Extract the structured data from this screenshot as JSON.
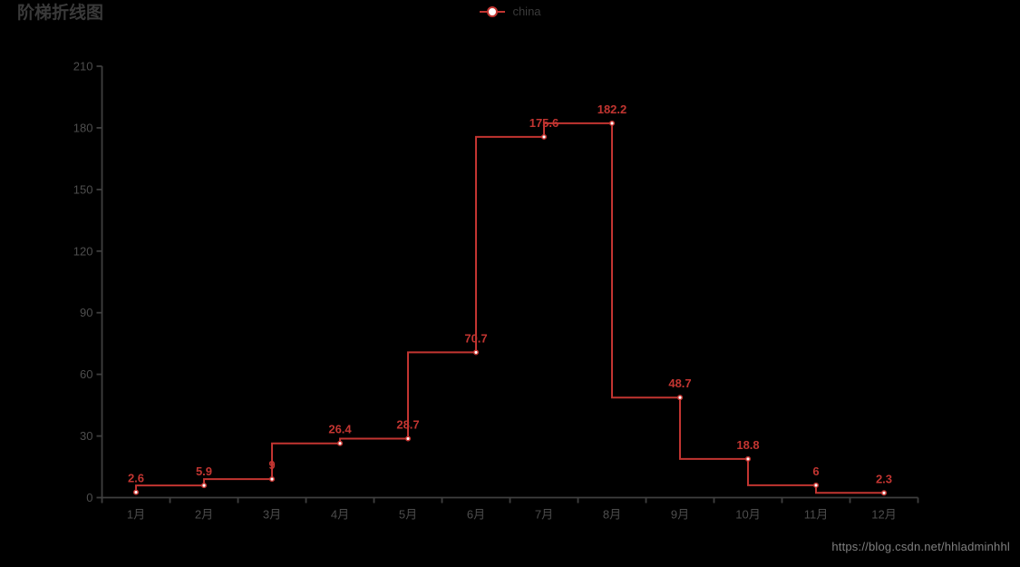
{
  "page": {
    "background": "#000000",
    "watermark": "https://blog.csdn.net/hhladminhhl"
  },
  "chart_data": {
    "type": "line",
    "line_style": "step",
    "step_type": "start",
    "title": "阶梯折线图",
    "legend": [
      "china"
    ],
    "legend_position": "top-center",
    "categories": [
      "1月",
      "2月",
      "3月",
      "4月",
      "5月",
      "6月",
      "7月",
      "8月",
      "9月",
      "10月",
      "11月",
      "12月"
    ],
    "series": [
      {
        "name": "china",
        "values": [
          2.6,
          5.9,
          9,
          26.4,
          28.7,
          70.7,
          175.6,
          182.2,
          48.7,
          18.8,
          6,
          2.3
        ]
      }
    ],
    "xlabel": "",
    "ylabel": "",
    "ylim": [
      0,
      210
    ],
    "y_ticks": [
      0,
      30,
      60,
      90,
      120,
      150,
      180,
      210
    ],
    "grid": false,
    "data_labels_shown": true,
    "marker": "empty-circle",
    "colors": {
      "series": "#c23531",
      "marker_fill": "#ffffff",
      "data_label": "#c23531",
      "axis_line": "#3f3f3f",
      "axis_label": "#4d4d4d",
      "title": "#3a3a3a",
      "legend_text": "#3a3a3a",
      "watermark": "#7f7f7f",
      "background": "#000000"
    }
  }
}
